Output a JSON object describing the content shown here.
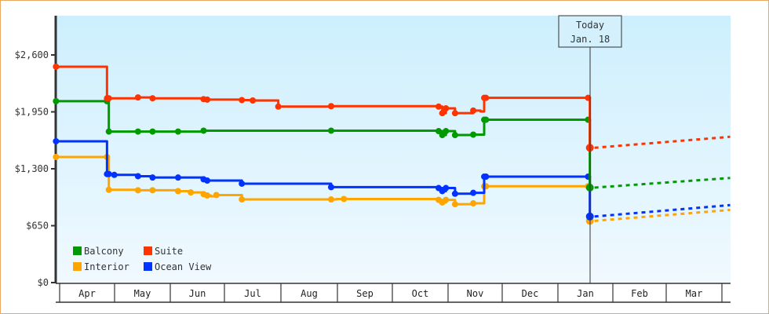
{
  "chart_data": {
    "type": "line",
    "title": "",
    "xlabel": "",
    "ylabel": "",
    "ylim": [
      0,
      2900
    ],
    "yticks": [
      0,
      650,
      1300,
      1950,
      2600
    ],
    "ytick_labels": [
      "$0",
      "$650",
      "$1,300",
      "$1,950",
      "$2,600"
    ],
    "months": [
      "Apr",
      "May",
      "Jun",
      "Jul",
      "Aug",
      "Sep",
      "Oct",
      "Nov",
      "Dec",
      "Jan",
      "Feb",
      "Mar"
    ],
    "today": {
      "line1": "Today",
      "line2": "Jan. 18",
      "day": 291
    },
    "x_unit": "days since Apr 1",
    "legend": [
      {
        "name": "Balcony",
        "color": "#009900"
      },
      {
        "name": "Suite",
        "color": "#ff3300"
      },
      {
        "name": "Interior",
        "color": "#ffa500"
      },
      {
        "name": "Ocean View",
        "color": "#0033ff"
      }
    ],
    "series": [
      {
        "name": "Suite",
        "color": "#ff3300",
        "history": [
          [
            -2,
            2466
          ],
          [
            26,
            2466
          ],
          [
            26,
            2105
          ],
          [
            43,
            2115
          ],
          [
            51,
            2105
          ],
          [
            79,
            2095
          ],
          [
            81,
            2090
          ],
          [
            100,
            2085
          ],
          [
            106,
            2080
          ],
          [
            120,
            2070
          ],
          [
            120,
            2010
          ],
          [
            149,
            2015
          ],
          [
            208,
            2010
          ],
          [
            210,
            1935
          ],
          [
            212,
            1990
          ],
          [
            217,
            1985
          ],
          [
            217,
            1935
          ],
          [
            227,
            1965
          ],
          [
            231,
            1955
          ],
          [
            233,
            1960
          ],
          [
            233,
            2110
          ],
          [
            290,
            2110
          ],
          [
            291,
            1540
          ]
        ],
        "forecast": [
          [
            291,
            1540
          ],
          [
            368,
            1665
          ]
        ],
        "markers": [
          -2,
          26,
          27,
          43,
          51,
          79,
          81,
          100,
          106,
          120,
          149,
          208,
          210,
          212,
          217,
          227,
          233,
          234,
          290,
          291
        ]
      },
      {
        "name": "Balcony",
        "color": "#009900",
        "history": [
          [
            -2,
            2072
          ],
          [
            26,
            2072
          ],
          [
            27,
            1725
          ],
          [
            43,
            1725
          ],
          [
            51,
            1725
          ],
          [
            65,
            1725
          ],
          [
            79,
            1735
          ],
          [
            149,
            1735
          ],
          [
            208,
            1730
          ],
          [
            210,
            1685
          ],
          [
            212,
            1730
          ],
          [
            217,
            1730
          ],
          [
            217,
            1685
          ],
          [
            227,
            1690
          ],
          [
            233,
            1690
          ],
          [
            233,
            1860
          ],
          [
            290,
            1860
          ],
          [
            291,
            1085
          ]
        ],
        "forecast": [
          [
            291,
            1085
          ],
          [
            368,
            1195
          ]
        ],
        "markers": [
          -2,
          26,
          27,
          43,
          51,
          65,
          79,
          149,
          208,
          210,
          212,
          217,
          227,
          233,
          234,
          290,
          291
        ]
      },
      {
        "name": "Ocean View",
        "color": "#0033ff",
        "history": [
          [
            -2,
            1614
          ],
          [
            26,
            1614
          ],
          [
            26,
            1240
          ],
          [
            30,
            1230
          ],
          [
            43,
            1215
          ],
          [
            51,
            1200
          ],
          [
            65,
            1200
          ],
          [
            79,
            1180
          ],
          [
            81,
            1165
          ],
          [
            100,
            1130
          ],
          [
            149,
            1090
          ],
          [
            208,
            1080
          ],
          [
            210,
            1045
          ],
          [
            212,
            1080
          ],
          [
            217,
            1080
          ],
          [
            217,
            1015
          ],
          [
            227,
            1025
          ],
          [
            233,
            1025
          ],
          [
            233,
            1210
          ],
          [
            290,
            1210
          ],
          [
            291,
            755
          ]
        ],
        "forecast": [
          [
            291,
            755
          ],
          [
            368,
            885
          ]
        ],
        "markers": [
          -2,
          26,
          27,
          30,
          43,
          51,
          65,
          79,
          81,
          100,
          149,
          208,
          210,
          212,
          217,
          227,
          233,
          234,
          290,
          291
        ]
      },
      {
        "name": "Interior",
        "color": "#ffa500",
        "history": [
          [
            -2,
            1435
          ],
          [
            26,
            1435
          ],
          [
            27,
            1060
          ],
          [
            43,
            1055
          ],
          [
            51,
            1055
          ],
          [
            65,
            1045
          ],
          [
            72,
            1030
          ],
          [
            79,
            1010
          ],
          [
            81,
            995
          ],
          [
            83,
            985
          ],
          [
            86,
            1000
          ],
          [
            100,
            950
          ],
          [
            149,
            950
          ],
          [
            152,
            955
          ],
          [
            208,
            945
          ],
          [
            210,
            915
          ],
          [
            212,
            945
          ],
          [
            217,
            945
          ],
          [
            217,
            895
          ],
          [
            227,
            905
          ],
          [
            233,
            905
          ],
          [
            233,
            1100
          ],
          [
            290,
            1100
          ],
          [
            291,
            705
          ]
        ],
        "forecast": [
          [
            291,
            705
          ],
          [
            368,
            830
          ]
        ],
        "markers": [
          -2,
          26,
          27,
          43,
          51,
          65,
          72,
          79,
          81,
          86,
          100,
          149,
          156,
          208,
          210,
          212,
          217,
          227,
          233,
          234,
          290,
          291
        ]
      }
    ]
  }
}
